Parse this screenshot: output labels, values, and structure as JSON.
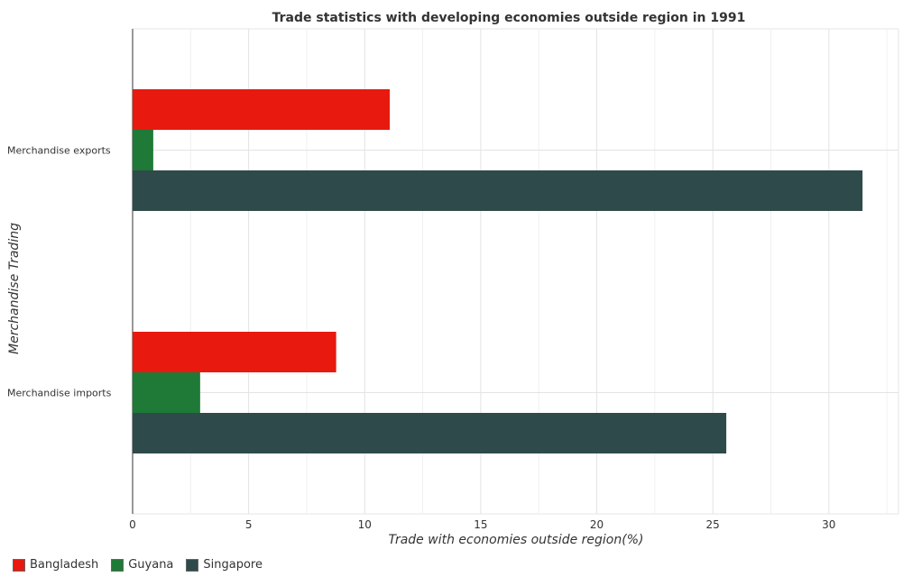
{
  "chart_data": {
    "type": "bar",
    "orientation": "horizontal",
    "title": "Trade statistics with developing economies outside region in 1991",
    "xlabel": "Trade with economies outside region(%)",
    "ylabel": "Merchandise Trading",
    "categories": [
      "Merchandise exports",
      "Merchandise imports"
    ],
    "series": [
      {
        "name": "Bangladesh",
        "color": "#e8190e",
        "values": [
          11.08,
          8.77
        ]
      },
      {
        "name": "Guyana",
        "color": "#1e7a36",
        "values": [
          0.89,
          2.91
        ]
      },
      {
        "name": "Singapore",
        "color": "#2f4a4a",
        "values": [
          31.45,
          25.58
        ]
      }
    ],
    "xlim": [
      0,
      33
    ],
    "xticks": [
      0,
      5,
      10,
      15,
      20,
      25,
      30
    ],
    "grid": true,
    "legend_position": "bottom-left"
  }
}
